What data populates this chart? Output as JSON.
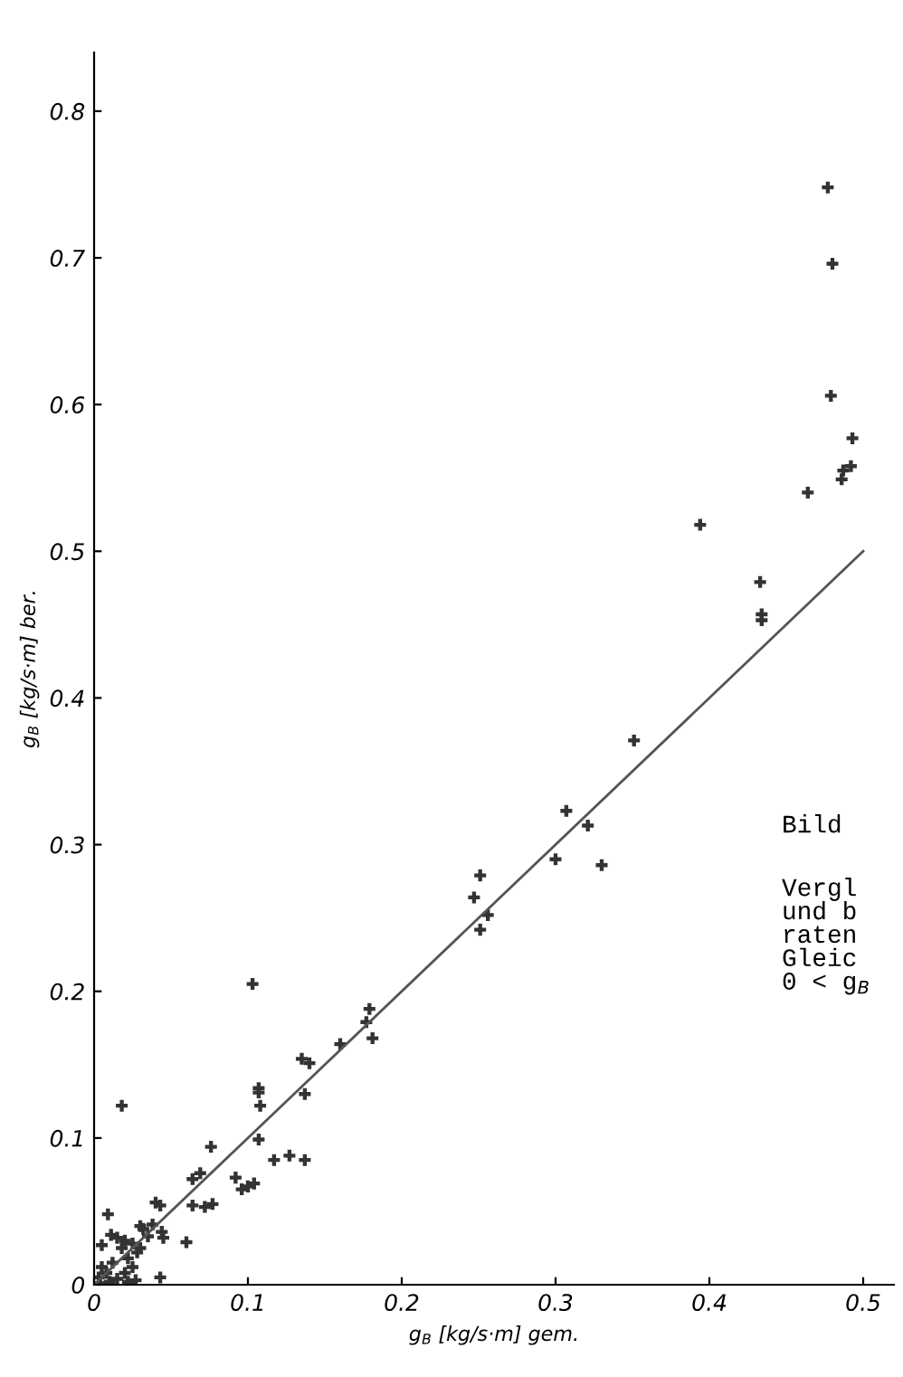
{
  "chart_data": {
    "type": "scatter",
    "xlabel": "g$_{B}$ [kg/s·m] gem.",
    "ylabel": "g$_{B}$ [kg/s·m] ber.",
    "xlim": [
      0,
      0.52
    ],
    "ylim": [
      0,
      0.84
    ],
    "xticks": [
      0,
      0.1,
      0.2,
      0.3,
      0.4,
      0.5
    ],
    "yticks": [
      0,
      0.1,
      0.2,
      0.3,
      0.4,
      0.5,
      0.6,
      0.7,
      0.8
    ],
    "grid": false,
    "marker": "cross",
    "series": [
      {
        "color": "#333333",
        "x": [
          0.477,
          0.48,
          0.479,
          0.493,
          0.492,
          0.487,
          0.486,
          0.464,
          0.394,
          0.433,
          0.434,
          0.434,
          0.351,
          0.307,
          0.321,
          0.3,
          0.33,
          0.251,
          0.247,
          0.256,
          0.251,
          0.179,
          0.177,
          0.181,
          0.103,
          0.107,
          0.107,
          0.108,
          0.137,
          0.135,
          0.14,
          0.16,
          0.076,
          0.107,
          0.117,
          0.127,
          0.137,
          0.018,
          0.064,
          0.069,
          0.092,
          0.096,
          0.1,
          0.104,
          0.064,
          0.072,
          0.077,
          0.06,
          0.04,
          0.043,
          0.044,
          0.045,
          0.038,
          0.03,
          0.009,
          0.043,
          0.011,
          0.015,
          0.02,
          0.005,
          0.018,
          0.025,
          0.028,
          0.03,
          0.022,
          0.012,
          0.005,
          0.025,
          0.02,
          0.008,
          0.003,
          0.015,
          0.01,
          0.022,
          0.004,
          0.027,
          0.032,
          0.035
        ],
        "values": [
          0.748,
          0.696,
          0.606,
          0.577,
          0.558,
          0.555,
          0.549,
          0.54,
          0.518,
          0.479,
          0.457,
          0.453,
          0.371,
          0.323,
          0.313,
          0.29,
          0.286,
          0.279,
          0.264,
          0.252,
          0.242,
          0.188,
          0.179,
          0.168,
          0.205,
          0.134,
          0.131,
          0.122,
          0.13,
          0.154,
          0.151,
          0.164,
          0.094,
          0.099,
          0.085,
          0.088,
          0.085,
          0.122,
          0.072,
          0.076,
          0.073,
          0.065,
          0.067,
          0.069,
          0.054,
          0.053,
          0.055,
          0.029,
          0.056,
          0.054,
          0.036,
          0.032,
          0.041,
          0.04,
          0.048,
          0.005,
          0.034,
          0.032,
          0.03,
          0.027,
          0.025,
          0.028,
          0.022,
          0.025,
          0.018,
          0.015,
          0.012,
          0.012,
          0.008,
          0.008,
          0.005,
          0.004,
          0.002,
          0.002,
          0.001,
          0.003,
          0.038,
          0.033
        ]
      },
      {
        "type": "line",
        "color": "#555555",
        "x": [
          0,
          0.5
        ],
        "values": [
          0,
          0.5
        ],
        "line_style": "solid",
        "marker": "none"
      }
    ],
    "annotations": [
      "Bild",
      "Vergl\nund b\nraten\nGleic\n0 < g$_{B}$"
    ]
  }
}
